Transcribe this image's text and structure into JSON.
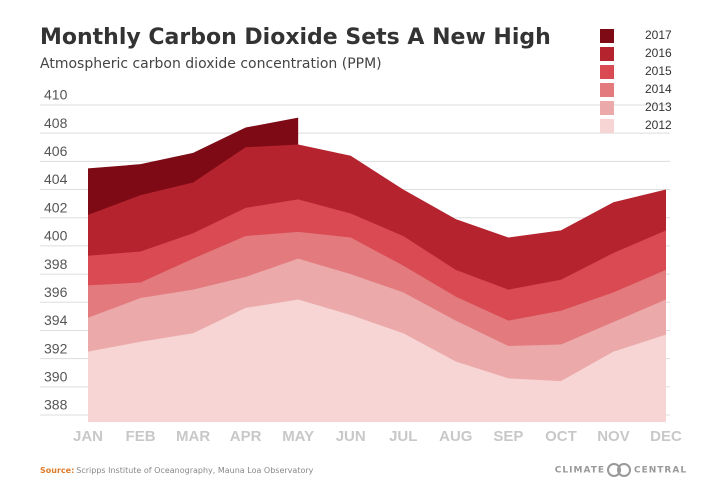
{
  "chart_data": {
    "type": "area",
    "title": "Monthly Carbon Dioxide Sets A New High",
    "subtitle": "Atmospheric carbon dioxide concentration (PPM)",
    "source_label": "Source:",
    "source": "Scripps Institute of Oceanography, Mauna Loa Observatory",
    "logo": [
      "CLIMATE",
      "CENTRAL"
    ],
    "categories": [
      "JAN",
      "FEB",
      "MAR",
      "APR",
      "MAY",
      "JUN",
      "JUL",
      "AUG",
      "SEP",
      "OCT",
      "NOV",
      "DEC"
    ],
    "series": [
      {
        "name": "2017",
        "color": "#7d0a14",
        "values": [
          405.5,
          405.8,
          406.6,
          408.4,
          409.1,
          null,
          null,
          null,
          null,
          null,
          null,
          null
        ]
      },
      {
        "name": "2016",
        "color": "#b5232f",
        "values": [
          402.2,
          403.6,
          404.5,
          407.0,
          407.2,
          406.4,
          404.0,
          401.9,
          400.6,
          401.1,
          403.1,
          404.0
        ]
      },
      {
        "name": "2015",
        "color": "#d94a53",
        "values": [
          399.3,
          399.6,
          400.9,
          402.7,
          403.3,
          402.3,
          400.7,
          398.3,
          396.9,
          397.6,
          399.5,
          401.1
        ]
      },
      {
        "name": "2014",
        "color": "#e37a7e",
        "values": [
          397.2,
          397.4,
          399.1,
          400.7,
          401.0,
          400.6,
          398.6,
          396.4,
          394.7,
          395.4,
          396.7,
          398.3
        ]
      },
      {
        "name": "2013",
        "color": "#eba9aa",
        "values": [
          394.9,
          396.3,
          396.9,
          397.8,
          399.1,
          398.0,
          396.7,
          394.7,
          392.9,
          393.0,
          394.6,
          396.2
        ]
      },
      {
        "name": "2012",
        "color": "#f6d5d4",
        "values": [
          392.5,
          393.2,
          393.8,
          395.6,
          396.2,
          395.1,
          393.8,
          391.8,
          390.6,
          390.4,
          392.5,
          393.7
        ]
      }
    ],
    "ylim": [
      388,
      410
    ],
    "yticks": [
      388,
      390,
      392,
      394,
      396,
      398,
      400,
      402,
      404,
      406,
      408,
      410
    ],
    "grid": true,
    "legend": "top-right"
  }
}
